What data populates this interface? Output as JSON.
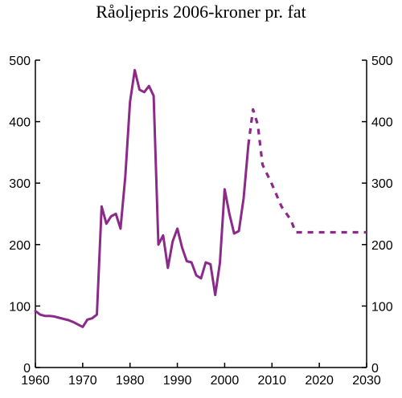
{
  "chart_data": {
    "type": "line",
    "title": "Råoljepris 2006-kroner pr. fat",
    "xlabel": "",
    "ylabel": "",
    "xlim": [
      1960,
      2030
    ],
    "ylim": [
      0,
      500
    ],
    "x_ticks": [
      1960,
      1970,
      1980,
      1990,
      2000,
      2010,
      2020,
      2030
    ],
    "y_ticks": [
      0,
      100,
      200,
      300,
      400,
      500
    ],
    "x_tick_labels": [
      "1960",
      "1970",
      "1980",
      "1990",
      "2000",
      "2010",
      "2020",
      "2030"
    ],
    "y_tick_labels": [
      "0",
      "100",
      "200",
      "300",
      "400",
      "500"
    ],
    "y_axis_right": true,
    "grid": false,
    "legend": "none",
    "series": [
      {
        "style": "solid",
        "color": "#8b2a88",
        "x": [
          1960,
          1961,
          1962,
          1963,
          1964,
          1965,
          1966,
          1967,
          1968,
          1969,
          1970,
          1971,
          1972,
          1973,
          1974,
          1975,
          1976,
          1977,
          1978,
          1979,
          1980,
          1981,
          1982,
          1983,
          1984,
          1985,
          1986,
          1987,
          1988,
          1989,
          1990,
          1991,
          1992,
          1993,
          1994,
          1995,
          1996,
          1997,
          1998,
          1999,
          2000,
          2001,
          2002,
          2003,
          2004,
          2005
        ],
        "values": [
          92,
          86,
          84,
          84,
          83,
          81,
          79,
          77,
          74,
          70,
          66,
          78,
          80,
          86,
          262,
          234,
          246,
          250,
          226,
          310,
          432,
          484,
          452,
          448,
          458,
          442,
          200,
          215,
          162,
          205,
          226,
          195,
          173,
          171,
          150,
          145,
          171,
          168,
          118,
          170,
          290,
          250,
          218,
          222,
          275,
          362
        ]
      },
      {
        "style": "dashed",
        "color": "#8b2a88",
        "x": [
          2005,
          2006,
          2007,
          2008,
          2010,
          2012,
          2014,
          2015,
          2020,
          2025,
          2030
        ],
        "values": [
          362,
          420,
          395,
          330,
          298,
          262,
          240,
          220,
          220,
          220,
          220
        ]
      }
    ]
  }
}
